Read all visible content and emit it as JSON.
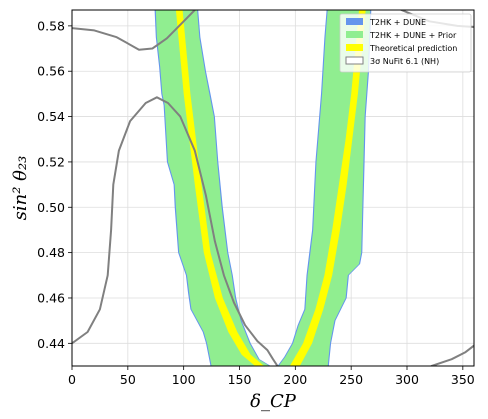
{
  "chart_data": {
    "type": "area",
    "title": "",
    "xlabel": "δ_CP",
    "ylabel": "sin² θ₂₃",
    "xlim": [
      0,
      360
    ],
    "ylim": [
      0.43,
      0.587
    ],
    "xticks": [
      0,
      50,
      100,
      150,
      200,
      250,
      300,
      350
    ],
    "yticks": [
      0.44,
      0.46,
      0.48,
      0.5,
      0.52,
      0.54,
      0.56,
      0.58
    ],
    "grid": true,
    "legend_position": "top-right",
    "legend": [
      {
        "label": "T2HK + DUNE",
        "color": "#6495ED",
        "kind": "fill"
      },
      {
        "label": "T2HK + DUNE + Prior",
        "color": "#90EE90",
        "kind": "fill"
      },
      {
        "label": "Theoretical prediction",
        "color": "#FFFF00",
        "kind": "fill"
      },
      {
        "label": "3σ NuFit 6.1 (NH)",
        "color": "#808080",
        "kind": "outline"
      }
    ],
    "series": [
      {
        "name": "T2HK + DUNE",
        "color": "#6495ED",
        "regions": [
          {
            "left": [
              [
                74,
                0.587
              ],
              [
                75,
                0.575
              ],
              [
                78,
                0.562
              ],
              [
                80,
                0.55
              ],
              [
                82,
                0.545
              ],
              [
                85,
                0.52
              ],
              [
                91,
                0.51
              ],
              [
                92,
                0.5
              ],
              [
                95,
                0.48
              ],
              [
                102,
                0.47
              ],
              [
                104,
                0.462
              ],
              [
                106,
                0.455
              ],
              [
                117,
                0.445
              ],
              [
                120,
                0.44
              ],
              [
                124,
                0.43
              ]
            ],
            "right": [
              [
                113,
                0.587
              ],
              [
                115,
                0.575
              ],
              [
                120,
                0.56
              ],
              [
                124,
                0.55
              ],
              [
                128,
                0.54
              ],
              [
                131,
                0.52
              ],
              [
                135,
                0.5
              ],
              [
                140,
                0.48
              ],
              [
                144,
                0.47
              ],
              [
                147,
                0.46
              ],
              [
                152,
                0.45
              ],
              [
                160,
                0.44
              ],
              [
                168,
                0.433
              ],
              [
                178,
                0.43
              ]
            ]
          },
          {
            "left": [
              [
                184,
                0.43
              ],
              [
                190,
                0.434
              ],
              [
                197,
                0.44
              ],
              [
                202,
                0.448
              ],
              [
                208,
                0.455
              ],
              [
                210,
                0.47
              ],
              [
                212,
                0.478
              ],
              [
                215,
                0.49
              ],
              [
                218,
                0.52
              ],
              [
                223,
                0.55
              ],
              [
                226,
                0.575
              ],
              [
                228,
                0.587
              ]
            ],
            "right": [
              [
                230,
                0.43
              ],
              [
                232,
                0.44
              ],
              [
                236,
                0.45
              ],
              [
                246,
                0.46
              ],
              [
                248,
                0.47
              ],
              [
                258,
                0.475
              ],
              [
                260,
                0.48
              ],
              [
                261,
                0.5
              ],
              [
                262,
                0.52
              ],
              [
                263,
                0.54
              ],
              [
                266,
                0.56
              ],
              [
                268,
                0.587
              ]
            ]
          }
        ]
      },
      {
        "name": "T2HK + DUNE + Prior",
        "color": "#90EE90",
        "regions": [
          {
            "left": [
              [
                75,
                0.587
              ],
              [
                76,
                0.575
              ],
              [
                79,
                0.562
              ],
              [
                81,
                0.55
              ],
              [
                83,
                0.545
              ],
              [
                86,
                0.52
              ],
              [
                92,
                0.51
              ],
              [
                93,
                0.5
              ],
              [
                96,
                0.48
              ],
              [
                103,
                0.47
              ],
              [
                105,
                0.462
              ],
              [
                107,
                0.455
              ],
              [
                118,
                0.445
              ],
              [
                121,
                0.44
              ],
              [
                125,
                0.43
              ]
            ],
            "right": [
              [
                112,
                0.587
              ],
              [
                114,
                0.575
              ],
              [
                119,
                0.56
              ],
              [
                123,
                0.55
              ],
              [
                127,
                0.54
              ],
              [
                130,
                0.52
              ],
              [
                134,
                0.5
              ],
              [
                139,
                0.48
              ],
              [
                143,
                0.47
              ],
              [
                146,
                0.46
              ],
              [
                151,
                0.45
              ],
              [
                159,
                0.44
              ],
              [
                167,
                0.433
              ],
              [
                177,
                0.43
              ]
            ]
          },
          {
            "left": [
              [
                185,
                0.43
              ],
              [
                191,
                0.434
              ],
              [
                198,
                0.44
              ],
              [
                203,
                0.448
              ],
              [
                209,
                0.455
              ],
              [
                211,
                0.47
              ],
              [
                213,
                0.478
              ],
              [
                216,
                0.49
              ],
              [
                219,
                0.52
              ],
              [
                224,
                0.55
              ],
              [
                227,
                0.575
              ],
              [
                229,
                0.587
              ]
            ],
            "right": [
              [
                229,
                0.43
              ],
              [
                231,
                0.44
              ],
              [
                235,
                0.45
              ],
              [
                245,
                0.46
              ],
              [
                247,
                0.47
              ],
              [
                257,
                0.475
              ],
              [
                259,
                0.48
              ],
              [
                260,
                0.5
              ],
              [
                261,
                0.52
              ],
              [
                262,
                0.54
              ],
              [
                265,
                0.56
              ],
              [
                267,
                0.587
              ]
            ]
          }
        ]
      },
      {
        "name": "Theoretical prediction",
        "color": "#FFFF00",
        "regions": [
          {
            "left": [
              [
                93,
                0.587
              ],
              [
                100,
                0.55
              ],
              [
                110,
                0.51
              ],
              [
                118,
                0.48
              ],
              [
                128,
                0.46
              ],
              [
                140,
                0.445
              ],
              [
                152,
                0.435
              ],
              [
                164,
                0.43
              ]
            ],
            "right": [
              [
                99,
                0.587
              ],
              [
                106,
                0.55
              ],
              [
                116,
                0.51
              ],
              [
                124,
                0.48
              ],
              [
                135,
                0.46
              ],
              [
                148,
                0.445
              ],
              [
                160,
                0.435
              ],
              [
                172,
                0.43
              ]
            ]
          },
          {
            "left": [
              [
                195,
                0.43
              ],
              [
                207,
                0.44
              ],
              [
                218,
                0.455
              ],
              [
                226,
                0.47
              ],
              [
                233,
                0.49
              ],
              [
                239,
                0.51
              ],
              [
                245,
                0.53
              ],
              [
                250,
                0.55
              ],
              [
                257,
                0.587
              ]
            ],
            "right": [
              [
                204,
                0.43
              ],
              [
                215,
                0.44
              ],
              [
                225,
                0.455
              ],
              [
                233,
                0.47
              ],
              [
                240,
                0.49
              ],
              [
                246,
                0.51
              ],
              [
                251,
                0.53
              ],
              [
                256,
                0.55
              ],
              [
                263,
                0.587
              ]
            ]
          }
        ]
      }
    ],
    "contour": {
      "name": "3σ NuFit 6.1 (NH)",
      "color": "#808080",
      "paths": [
        [
          [
            0,
            0.579
          ],
          [
            20,
            0.578
          ],
          [
            40,
            0.575
          ],
          [
            60,
            0.5695
          ],
          [
            72,
            0.57
          ],
          [
            85,
            0.5745
          ],
          [
            100,
            0.582
          ],
          [
            110,
            0.587
          ]
        ],
        [
          [
            0,
            0.44
          ],
          [
            14,
            0.445
          ],
          [
            25,
            0.455
          ],
          [
            32,
            0.47
          ],
          [
            35,
            0.49
          ],
          [
            37,
            0.51
          ],
          [
            42,
            0.525
          ],
          [
            52,
            0.538
          ],
          [
            66,
            0.546
          ],
          [
            76,
            0.5485
          ],
          [
            86,
            0.546
          ],
          [
            97,
            0.54
          ],
          [
            110,
            0.525
          ],
          [
            120,
            0.505
          ],
          [
            128,
            0.485
          ],
          [
            136,
            0.47
          ],
          [
            145,
            0.458
          ],
          [
            155,
            0.448
          ],
          [
            166,
            0.441
          ],
          [
            175,
            0.437
          ],
          [
            180,
            0.433
          ],
          [
            184,
            0.43
          ]
        ],
        [
          [
            295,
            0.587
          ],
          [
            320,
            0.582
          ],
          [
            345,
            0.58
          ],
          [
            360,
            0.5795
          ]
        ],
        [
          [
            322,
            0.43
          ],
          [
            340,
            0.433
          ],
          [
            352,
            0.436
          ],
          [
            360,
            0.439
          ]
        ]
      ]
    }
  }
}
